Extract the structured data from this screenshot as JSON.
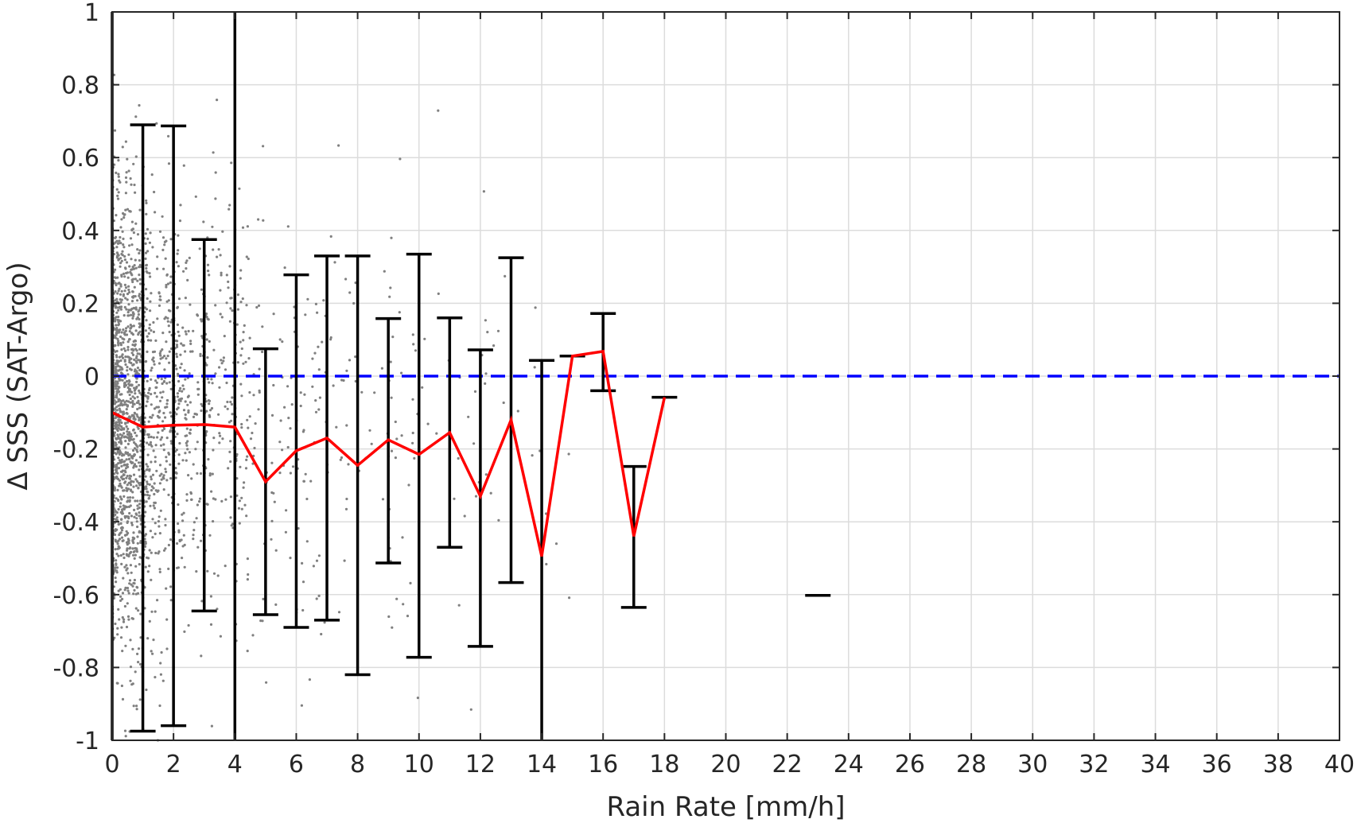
{
  "chart_data": {
    "type": "line",
    "xlabel": "Rain Rate [mm/h]",
    "ylabel": "Δ SSS (SAT-Argo)",
    "xlim": [
      0,
      40
    ],
    "ylim": [
      -1,
      1
    ],
    "xticks": [
      0,
      2,
      4,
      6,
      8,
      10,
      12,
      14,
      16,
      18,
      20,
      22,
      24,
      26,
      28,
      30,
      32,
      34,
      36,
      38,
      40
    ],
    "yticks": [
      -1,
      -0.8,
      -0.6,
      -0.4,
      -0.2,
      0,
      0.2,
      0.4,
      0.6,
      0.8,
      1
    ],
    "xtick_labels": [
      "0",
      "2",
      "4",
      "6",
      "8",
      "10",
      "12",
      "14",
      "16",
      "18",
      "20",
      "22",
      "24",
      "26",
      "28",
      "30",
      "32",
      "34",
      "36",
      "38",
      "40"
    ],
    "ytick_labels": [
      "-1",
      "-0.8",
      "-0.6",
      "-0.4",
      "-0.2",
      "0",
      "0.2",
      "0.4",
      "0.6",
      "0.8",
      "1"
    ],
    "grid": true,
    "reference_line": {
      "y": 0,
      "style": "dashed",
      "color": "#0000ff"
    },
    "series": [
      {
        "kind": "line",
        "color": "#ff0000",
        "x": [
          0,
          1,
          2,
          3,
          4,
          5,
          6,
          7,
          8,
          9,
          10,
          11,
          12,
          13,
          14,
          15,
          16,
          17,
          18
        ],
        "y": [
          -0.1,
          -0.14,
          -0.135,
          -0.133,
          -0.14,
          -0.29,
          -0.205,
          -0.17,
          -0.245,
          -0.175,
          -0.215,
          -0.155,
          -0.33,
          -0.12,
          -0.495,
          0.055,
          0.068,
          -0.44,
          -0.058
        ]
      },
      {
        "kind": "errorbar",
        "color": "#000000",
        "bars": [
          {
            "x": 0,
            "low": -1.1,
            "high": 1.1
          },
          {
            "x": 1,
            "low": -0.975,
            "high": 0.69
          },
          {
            "x": 2,
            "low": -0.96,
            "high": 0.687
          },
          {
            "x": 3,
            "low": -0.645,
            "high": 0.375
          },
          {
            "x": 4,
            "low": -1.1,
            "high": 1.1
          },
          {
            "x": 5,
            "low": -0.655,
            "high": 0.075
          },
          {
            "x": 6,
            "low": -0.69,
            "high": 0.278
          },
          {
            "x": 7,
            "low": -0.67,
            "high": 0.33
          },
          {
            "x": 8,
            "low": -0.82,
            "high": 0.33
          },
          {
            "x": 9,
            "low": -0.513,
            "high": 0.158
          },
          {
            "x": 10,
            "low": -0.772,
            "high": 0.335
          },
          {
            "x": 11,
            "low": -0.47,
            "high": 0.16
          },
          {
            "x": 12,
            "low": -0.742,
            "high": 0.072
          },
          {
            "x": 13,
            "low": -0.567,
            "high": 0.325
          },
          {
            "x": 14,
            "low": -1.1,
            "high": 0.043
          },
          {
            "x": 15,
            "low": 0.055,
            "high": 0.055
          },
          {
            "x": 16,
            "low": -0.04,
            "high": 0.172
          },
          {
            "x": 17,
            "low": -0.635,
            "high": -0.248
          },
          {
            "x": 18,
            "low": -0.058,
            "high": -0.058
          },
          {
            "x": 23,
            "low": -0.602,
            "high": -0.602
          }
        ]
      },
      {
        "kind": "scatter",
        "color": "#808080",
        "note_density": [
          {
            "x_range": [
              0,
              1
            ],
            "count": 1300,
            "spread": 0.3
          },
          {
            "x_range": [
              1,
              2
            ],
            "count": 420,
            "spread": 0.3
          },
          {
            "x_range": [
              2,
              3
            ],
            "count": 230,
            "spread": 0.28
          },
          {
            "x_range": [
              3,
              4
            ],
            "count": 150,
            "spread": 0.28
          },
          {
            "x_range": [
              4,
              6
            ],
            "count": 140,
            "spread": 0.3
          },
          {
            "x_range": [
              6,
              9
            ],
            "count": 90,
            "spread": 0.3
          },
          {
            "x_range": [
              9,
              12
            ],
            "count": 55,
            "spread": 0.3
          },
          {
            "x_range": [
              12,
              15
            ],
            "count": 25,
            "spread": 0.3
          }
        ]
      }
    ]
  }
}
